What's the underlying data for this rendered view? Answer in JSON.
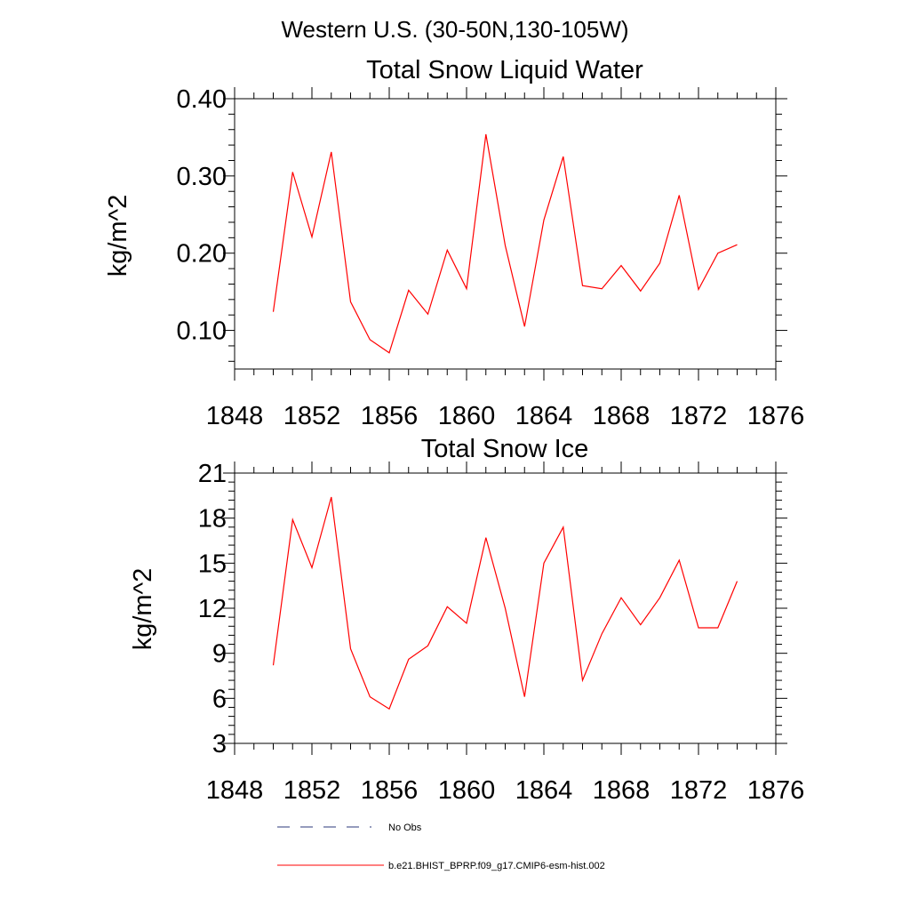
{
  "page": {
    "main_title": "Western U.S. (30-50N,130-105W)"
  },
  "legend": [
    {
      "label": "No Obs",
      "style": "dashed",
      "color": "#2b3a7a"
    },
    {
      "label": "b.e21.BHIST_BPRP.f09_g17.CMIP6-esm-hist.002",
      "style": "solid",
      "color": "#ff0000"
    }
  ],
  "chart_data": [
    {
      "type": "line",
      "title": "Total Snow Liquid Water",
      "xlabel": "",
      "ylabel": "kg/m^2",
      "xlim": [
        1848,
        1876
      ],
      "ylim": [
        0.05,
        0.4
      ],
      "xticks": [
        1848,
        1852,
        1856,
        1860,
        1864,
        1868,
        1872,
        1876
      ],
      "xtick_labels": [
        "1848",
        "1852",
        "1856",
        "1860",
        "1864",
        "1868",
        "1872",
        "1876"
      ],
      "yticks": [
        0.1,
        0.2,
        0.3,
        0.4
      ],
      "ytick_labels": [
        "0.10",
        "0.20",
        "0.30",
        "0.40"
      ],
      "x": [
        1850,
        1851,
        1852,
        1853,
        1854,
        1855,
        1856,
        1857,
        1858,
        1859,
        1860,
        1861,
        1862,
        1863,
        1864,
        1865,
        1866,
        1867,
        1868,
        1869,
        1870,
        1871,
        1872,
        1873,
        1874
      ],
      "series": [
        {
          "name": "b.e21.BHIST_BPRP.f09_g17.CMIP6-esm-hist.002",
          "color": "#ff0000",
          "values": [
            0.124,
            0.305,
            0.221,
            0.331,
            0.137,
            0.088,
            0.071,
            0.152,
            0.121,
            0.204,
            0.154,
            0.354,
            0.21,
            0.105,
            0.243,
            0.325,
            0.158,
            0.154,
            0.184,
            0.151,
            0.187,
            0.275,
            0.153,
            0.2,
            0.211
          ]
        }
      ]
    },
    {
      "type": "line",
      "title": "Total Snow Ice",
      "xlabel": "",
      "ylabel": "kg/m^2",
      "xlim": [
        1848,
        1876
      ],
      "ylim": [
        3,
        21
      ],
      "xticks": [
        1848,
        1852,
        1856,
        1860,
        1864,
        1868,
        1872,
        1876
      ],
      "xtick_labels": [
        "1848",
        "1852",
        "1856",
        "1860",
        "1864",
        "1868",
        "1872",
        "1876"
      ],
      "yticks": [
        3,
        6,
        9,
        12,
        15,
        18,
        21
      ],
      "ytick_labels": [
        "3",
        "6",
        "9",
        "12",
        "15",
        "18",
        "21"
      ],
      "x": [
        1850,
        1851,
        1852,
        1853,
        1854,
        1855,
        1856,
        1857,
        1858,
        1859,
        1860,
        1861,
        1862,
        1863,
        1864,
        1865,
        1866,
        1867,
        1868,
        1869,
        1870,
        1871,
        1872,
        1873,
        1874
      ],
      "series": [
        {
          "name": "b.e21.BHIST_BPRP.f09_g17.CMIP6-esm-hist.002",
          "color": "#ff0000",
          "values": [
            8.2,
            17.9,
            14.7,
            19.4,
            9.3,
            6.1,
            5.3,
            8.6,
            9.5,
            12.1,
            11.0,
            16.7,
            12.0,
            6.1,
            15.0,
            17.4,
            7.2,
            10.3,
            12.7,
            10.9,
            12.7,
            15.2,
            10.7,
            10.7,
            13.8
          ]
        }
      ]
    }
  ]
}
